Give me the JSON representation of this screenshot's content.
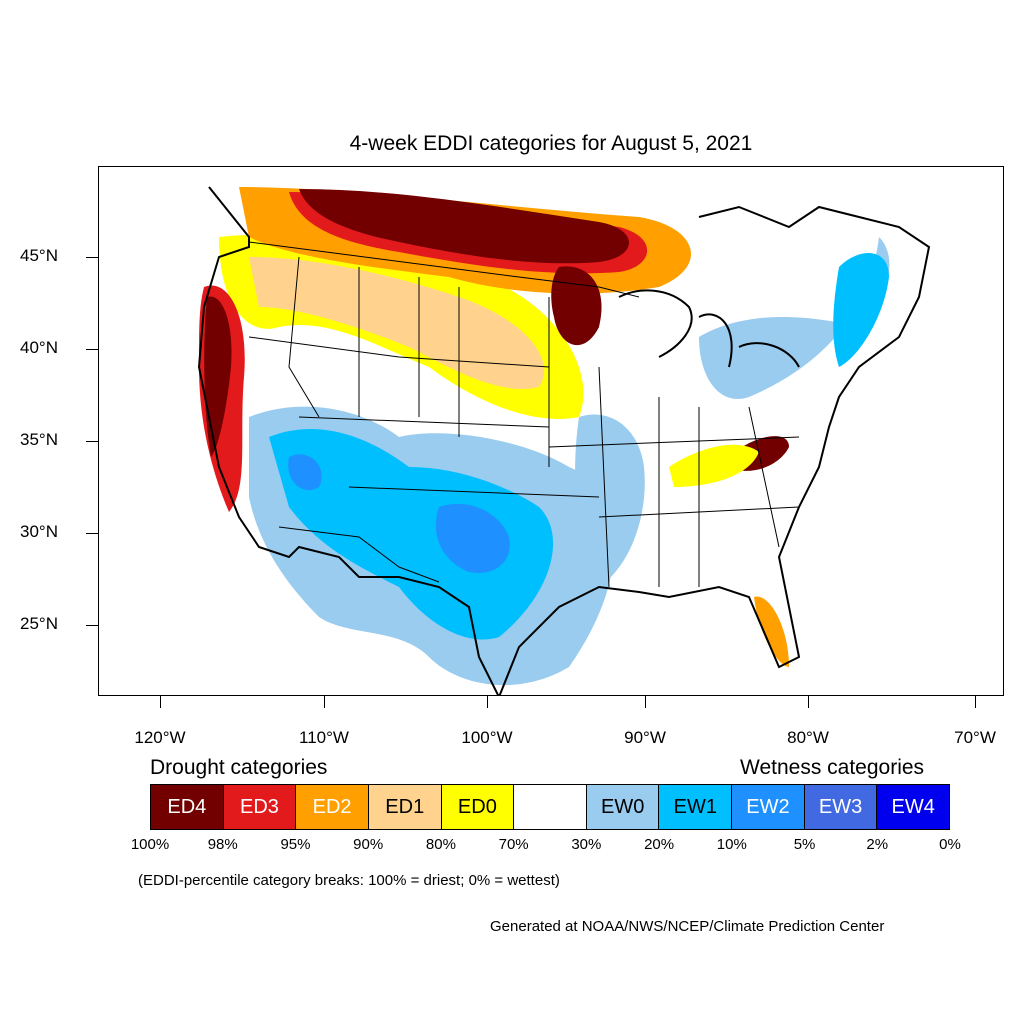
{
  "title": "4-week EDDI categories for August 5, 2021",
  "map": {
    "lat_ticks": [
      "45°N",
      "40°N",
      "35°N",
      "30°N",
      "25°N"
    ],
    "lon_ticks": [
      "120°W",
      "110°W",
      "100°W",
      "90°W",
      "80°W",
      "70°W"
    ],
    "region": "CONUS",
    "colors": {
      "ED4": "#720000",
      "ED3": "#e31a1c",
      "ED2": "#ff9f00",
      "ED1": "#ffd38e",
      "ED0": "#ffff00",
      "neutral": "#ffffff",
      "EW0": "#99ccee",
      "EW1": "#00bfff",
      "EW2": "#1e90ff",
      "EW3": "#4169e1",
      "EW4": "#0000ee"
    }
  },
  "legend": {
    "drought_label": "Drought categories",
    "wetness_label": "Wetness categories",
    "categories": [
      {
        "label": "ED4",
        "color": "#720000",
        "text_color": "#ffffff"
      },
      {
        "label": "ED3",
        "color": "#e31a1c",
        "text_color": "#ffffff"
      },
      {
        "label": "ED2",
        "color": "#ff9f00",
        "text_color": "#ffffff"
      },
      {
        "label": "ED1",
        "color": "#ffd38e",
        "text_color": "#000000"
      },
      {
        "label": "ED0",
        "color": "#ffff00",
        "text_color": "#000000"
      },
      {
        "label": "",
        "color": "#ffffff",
        "text_color": "#000000"
      },
      {
        "label": "EW0",
        "color": "#99ccee",
        "text_color": "#000000"
      },
      {
        "label": "EW1",
        "color": "#00bfff",
        "text_color": "#000000"
      },
      {
        "label": "EW2",
        "color": "#1e90ff",
        "text_color": "#ffffff"
      },
      {
        "label": "EW3",
        "color": "#4169e1",
        "text_color": "#ffffff"
      },
      {
        "label": "EW4",
        "color": "#0000ee",
        "text_color": "#ffffff"
      }
    ],
    "percentiles": [
      "100%",
      "98%",
      "95%",
      "90%",
      "80%",
      "70%",
      "30%",
      "20%",
      "10%",
      "5%",
      "2%",
      "0%"
    ]
  },
  "note": "(EDDI-percentile category breaks: 100% = driest; 0% = wettest)",
  "credit": "Generated at NOAA/NWS/NCEP/Climate Prediction Center"
}
